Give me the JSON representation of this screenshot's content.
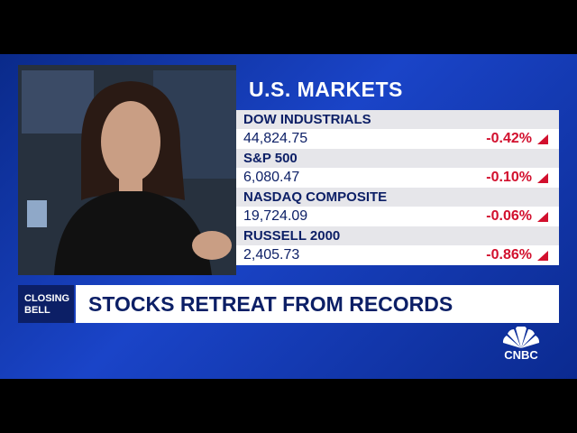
{
  "header": {
    "title": "U.S. MARKETS"
  },
  "markets": [
    {
      "name": "DOW INDUSTRIALS",
      "value": "44,824.75",
      "change": "-0.42%"
    },
    {
      "name": "S&P 500",
      "value": "6,080.47",
      "change": "-0.10%"
    },
    {
      "name": "NASDAQ COMPOSITE",
      "value": "19,724.09",
      "change": "-0.06%"
    },
    {
      "name": "RUSSELL 2000",
      "value": "2,405.73",
      "change": "-0.86%"
    }
  ],
  "banner": {
    "tag": "CLOSING BELL",
    "headline": "STOCKS RETREAT FROM RECORDS"
  },
  "logo": "CNBC"
}
